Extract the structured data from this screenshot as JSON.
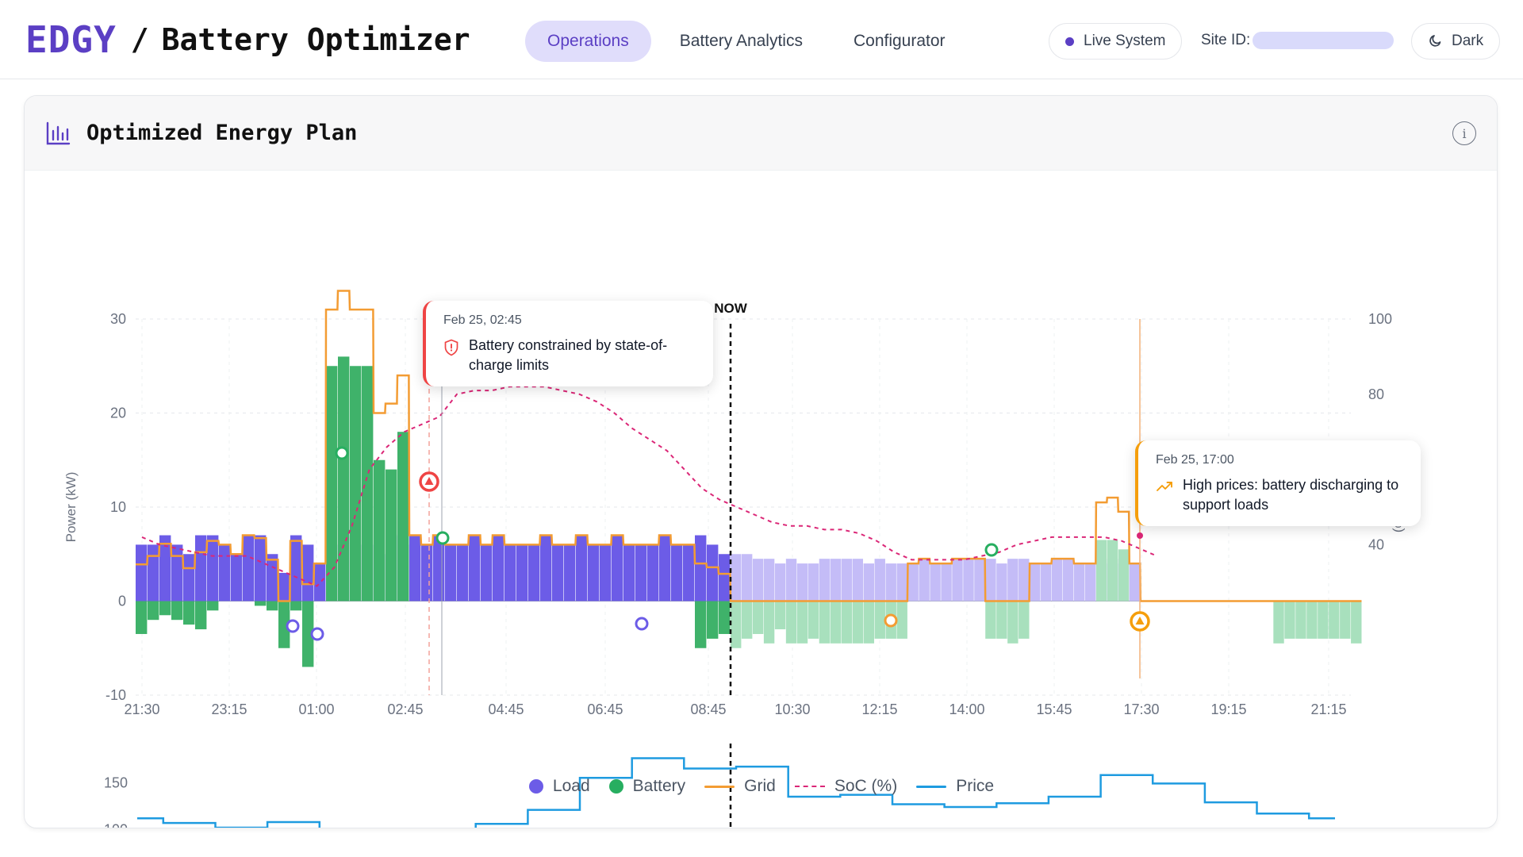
{
  "header": {
    "logo": "EDGY",
    "separator": "/",
    "app_title": "Battery Optimizer",
    "tabs": [
      {
        "label": "Operations",
        "active": true
      },
      {
        "label": "Battery Analytics",
        "active": false
      },
      {
        "label": "Configurator",
        "active": false
      }
    ],
    "status": "Live System",
    "site_label": "Site ID:",
    "theme_label": "Dark",
    "colors": {
      "brand": "#5b3fc4",
      "active_tab_bg": "#e0ddfb"
    }
  },
  "card": {
    "title": "Optimized Energy Plan",
    "icon": "bar-chart-icon",
    "info_icon": "info-icon",
    "info_label": "i"
  },
  "tooltips": [
    {
      "date": "Feb 25, 02:45",
      "text": "Battery constrained by state-of-charge limits",
      "icon": "shield-alert-icon",
      "color": "#ef4444"
    },
    {
      "date": "Feb 25, 17:00",
      "text": "High prices: battery discharging to support loads",
      "icon": "trending-up-icon",
      "color": "#f59e0b"
    }
  ],
  "legend": [
    {
      "label": "Load",
      "color": "#6c5ce7"
    },
    {
      "label": "Battery",
      "color": "#27ae60"
    },
    {
      "label": "Grid",
      "color": "#f39c33"
    },
    {
      "label": "SoC (%)",
      "color": "#db2777"
    },
    {
      "label": "Price",
      "color": "#1e9be0"
    }
  ],
  "chart_data": [
    {
      "type": "bar",
      "now_label": "NOW",
      "now_x": 109,
      "x_unit": "15-minute interval index starting 21:30",
      "x_tick_labels": [
        "21:30",
        "23:15",
        "01:00",
        "02:45",
        "04:45",
        "06:45",
        "08:45",
        "10:30",
        "12:15",
        "14:00",
        "15:45",
        "17:30",
        "19:15",
        "21:15"
      ],
      "x_tick_index": [
        0,
        7,
        14,
        21,
        29,
        37,
        47,
        52,
        59,
        66,
        73,
        80,
        87,
        96
      ],
      "ylabel_left": "Power (kW)",
      "ylabel_right": "SoC (%)",
      "ylim_left": [
        -10,
        30
      ],
      "ylim_right": [
        0,
        100
      ],
      "y_ticks_left": [
        30,
        20,
        10,
        0,
        -10
      ],
      "y_ticks_right": [
        100,
        80,
        60,
        40
      ],
      "series": [
        {
          "name": "Load",
          "type": "bar",
          "color": "#6c5ce7",
          "values": [
            6,
            6,
            7,
            6,
            5,
            7,
            7,
            6,
            5,
            7,
            7,
            5,
            3,
            7,
            6,
            4,
            6,
            7,
            6,
            6,
            5,
            7,
            6,
            7,
            6,
            7,
            6,
            6,
            7,
            6,
            7,
            6,
            6,
            6,
            7,
            6,
            6,
            7,
            6,
            6,
            7,
            6,
            6,
            6,
            7,
            6,
            6,
            7,
            6,
            5,
            5,
            5,
            4.5,
            4.5,
            4,
            4.5,
            4,
            4,
            4.5,
            4.5,
            4.5,
            4.5,
            4,
            4.5,
            4,
            4,
            4,
            4.5,
            4,
            4,
            4.5,
            4.5,
            4.5,
            4.5,
            4,
            4.5,
            4.5,
            4,
            4,
            4.5,
            4.5,
            4,
            4,
            4,
            4.5,
            4,
            4
          ]
        },
        {
          "name": "Battery",
          "type": "bar",
          "color": "#27ae60",
          "values": [
            -3.5,
            -2,
            -1.5,
            -2,
            -2.5,
            -3,
            -1,
            0,
            0,
            0,
            -0.5,
            -1,
            -5,
            -1,
            -7,
            0,
            25,
            26,
            25,
            25,
            15,
            14,
            18,
            0,
            0,
            0,
            0,
            0,
            0,
            0,
            0,
            0,
            0,
            0,
            0,
            0,
            0,
            0,
            0,
            0,
            0,
            0,
            0,
            0,
            0,
            0,
            0,
            -5,
            -4,
            -3.5,
            -5,
            -4,
            -3.5,
            -4.5,
            -3,
            -4.5,
            -4.5,
            -4,
            -4.5,
            -4.5,
            -4.5,
            -4.5,
            -4.5,
            -4,
            -4,
            -4,
            0,
            0,
            0,
            0,
            0,
            0,
            0,
            -4,
            -4,
            -4.5,
            -4,
            0,
            0,
            0,
            0,
            0,
            0,
            6.5,
            6.5,
            5.5,
            0,
            0,
            0,
            0,
            0,
            0,
            0,
            0,
            0,
            0,
            0,
            0,
            0,
            -4.5,
            -4,
            -4,
            -4,
            -4,
            -4,
            -4,
            -4.5
          ]
        },
        {
          "name": "Grid",
          "type": "step",
          "color": "#f39c33"
        },
        {
          "name": "SoC (%)",
          "type": "line",
          "color": "#db2777",
          "values": [
            42,
            40,
            39,
            38,
            37,
            37,
            37,
            35,
            33,
            31,
            29,
            34,
            45,
            60,
            66,
            70,
            72,
            74,
            80,
            81,
            81,
            82,
            82,
            82,
            81,
            80,
            78,
            75,
            71,
            68,
            65,
            60,
            55,
            52,
            50,
            48,
            46,
            45,
            45,
            44,
            44,
            43,
            41,
            38,
            36,
            36,
            36,
            36,
            37,
            38,
            40,
            41,
            42,
            42,
            42,
            42,
            41,
            39,
            37
          ]
        }
      ],
      "markers": [
        {
          "label": "battery-charge-marker",
          "x": 12,
          "y": 16
        },
        {
          "label": "soc-limit-alert",
          "x": 17.5,
          "y": 12.5
        },
        {
          "label": "battery-marker",
          "x": 18.5,
          "y": 6.5
        },
        {
          "label": "load-marker",
          "x": 7.5,
          "y": -2.8
        },
        {
          "label": "load-marker",
          "x": 9,
          "y": -3.6
        },
        {
          "label": "load-marker",
          "x": 28.5,
          "y": -2.5
        },
        {
          "label": "grid-marker",
          "x": 44,
          "y": -2
        },
        {
          "label": "battery-marker",
          "x": 50,
          "y": 5.3
        },
        {
          "label": "high-price-alert",
          "x": 57.5,
          "y": -2.2
        }
      ]
    },
    {
      "type": "line",
      "name": "Price",
      "color": "#1e9be0",
      "y_ticks": [
        150,
        100
      ],
      "ylim": [
        75,
        195
      ],
      "step_values": [
        112,
        107,
        107,
        102,
        102,
        108,
        108,
        98,
        98,
        99,
        99,
        99,
        101,
        106,
        106,
        121,
        121,
        155,
        155,
        176,
        176,
        165,
        165,
        167,
        167,
        135,
        135,
        137,
        137,
        127,
        127,
        124,
        124,
        128,
        128,
        135,
        135,
        158,
        158,
        149,
        149,
        129,
        129,
        117,
        117,
        112
      ]
    }
  ]
}
